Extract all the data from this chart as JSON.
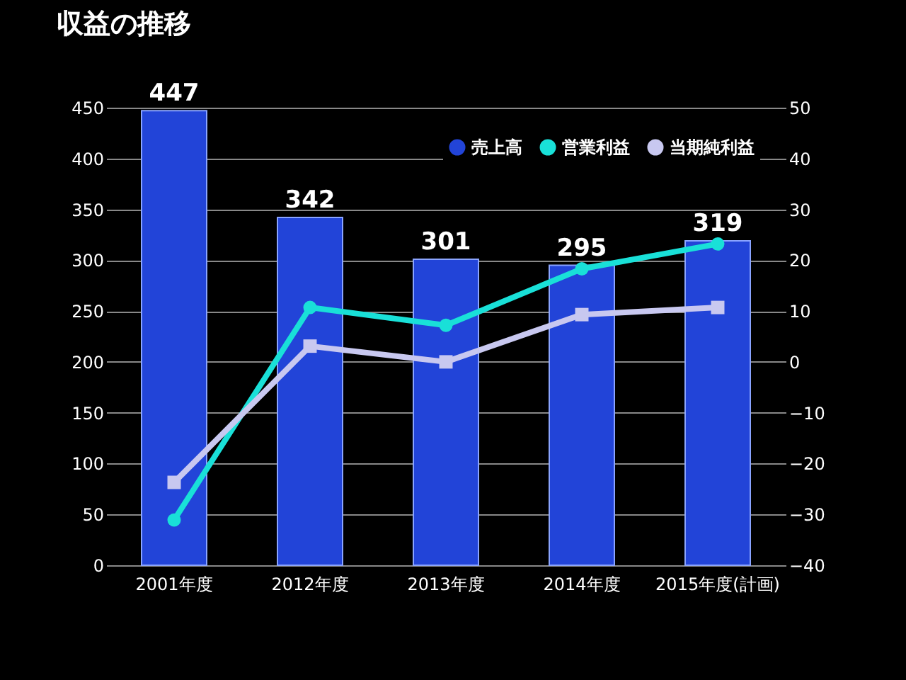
{
  "chart_data": {
    "type": "bar",
    "title": "収益の推移",
    "categories": [
      "2001年度",
      "2012年度",
      "2013年度",
      "2014年度",
      "2015年度(計画)"
    ],
    "series": [
      {
        "name": "売上高",
        "color": "#2244d8",
        "values": [
          447,
          342,
          301,
          295,
          319
        ],
        "value_labels": [
          "447",
          "342",
          "301",
          "295",
          "319"
        ]
      },
      {
        "name": "営業利益",
        "type": "line",
        "axis": "y2",
        "marker": "circle",
        "color": "#19e0d8",
        "values": [
          -31.1,
          10.7,
          7.2,
          18.3,
          23.2
        ]
      },
      {
        "name": "当期純利益",
        "type": "line",
        "axis": "y2",
        "marker": "square",
        "color": "#c8c8f0",
        "values": [
          -23.7,
          3.1,
          0,
          9.3,
          10.7
        ]
      }
    ],
    "ylim": [
      0,
      450
    ],
    "yticks": [
      0,
      50,
      100,
      150,
      200,
      250,
      300,
      350,
      400,
      450
    ],
    "y2lim": [
      -40,
      50
    ],
    "y2ticks": [
      -40,
      -30,
      -20,
      -10,
      0,
      10,
      20,
      30,
      40,
      50
    ],
    "grid": "y",
    "legend": "top right"
  }
}
